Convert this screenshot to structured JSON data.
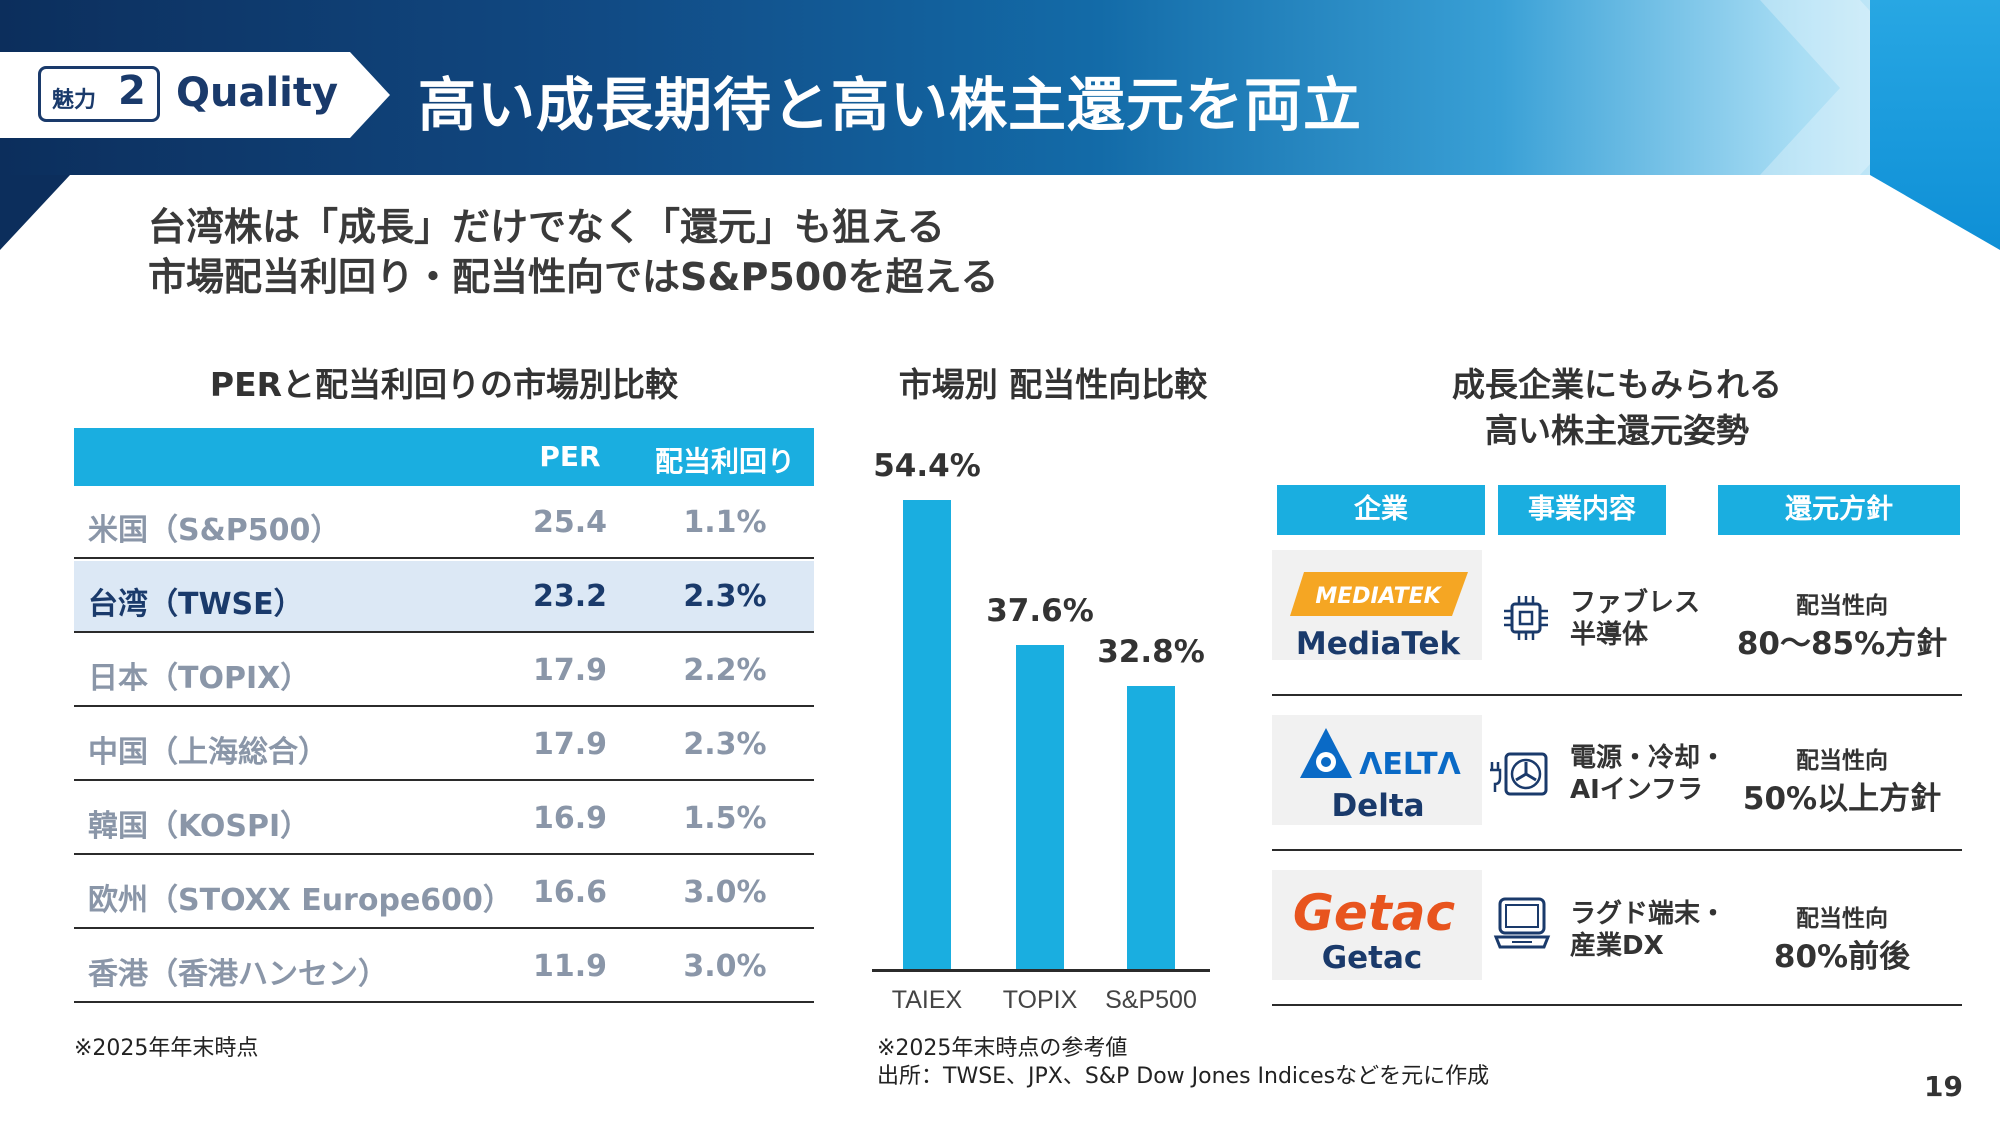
{
  "header": {
    "tag_small": "魅力",
    "tag_num": "2",
    "tag_word": "Quality",
    "title": "高い成長期待と高い株主還元を両立"
  },
  "subtitle": {
    "line1": "台湾株は「成長」だけでなく「還元」も狙える",
    "line2": "市場配当利回り・配当性向ではS&P500を超える"
  },
  "table_section": {
    "title": "PERと配当利回りの市場別比較",
    "headers": [
      "PER",
      "配当利回り"
    ],
    "rows": [
      {
        "market": "米国（S&P500）",
        "per": "25.4",
        "yield": "1.1%"
      },
      {
        "market": "台湾（TWSE）",
        "per": "23.2",
        "yield": "2.3%"
      },
      {
        "market": "日本（TOPIX）",
        "per": "17.9",
        "yield": "2.2%"
      },
      {
        "market": "中国（上海総合）",
        "per": "17.9",
        "yield": "2.3%"
      },
      {
        "market": "韓国（KOSPI）",
        "per": "16.9",
        "yield": "1.5%"
      },
      {
        "market": "欧州（STOXX Europe600）",
        "per": "16.6",
        "yield": "3.0%"
      },
      {
        "market": "香港（香港ハンセン）",
        "per": "11.9",
        "yield": "3.0%"
      }
    ],
    "note": "※2025年年末時点"
  },
  "chart_section": {
    "title": "市場別 配当性向比較",
    "note1": "※2025年末時点の参考値",
    "note2": "出所：TWSE、JPX、S&P Dow Jones Indicesなどを元に作成"
  },
  "chart_data": {
    "type": "bar",
    "title": "市場別 配当性向比較",
    "categories": [
      "TAIEX",
      "TOPIX",
      "S&P500"
    ],
    "values": [
      54.4,
      37.6,
      32.8
    ],
    "labels": [
      "54.4%",
      "37.6%",
      "32.8%"
    ],
    "bar_color": "#1aaee0",
    "ylim": [
      0,
      58
    ]
  },
  "companies_section": {
    "title1": "成長企業にもみられる",
    "title2": "高い株主還元姿勢",
    "headers": [
      "企業",
      "事業内容",
      "還元方針"
    ],
    "rows": [
      {
        "logo_text": "MEDIATEK",
        "name": "MediaTek",
        "biz1": "ファブレス",
        "biz2": "半導体",
        "icon": "chip-icon",
        "pol1": "配当性向",
        "pol2": "80～85%方針"
      },
      {
        "logo_text": "ΛELTΛ",
        "name": "Delta",
        "biz1": "電源・冷却・",
        "biz2": "AIインフラ",
        "icon": "power-fan-icon",
        "pol1": "配当性向",
        "pol2": "50%以上方針"
      },
      {
        "logo_text": "Getac",
        "name": "Getac",
        "biz1": "ラグド端末・",
        "biz2": "産業DX",
        "icon": "rugged-laptop-icon",
        "pol1": "配当性向",
        "pol2": "80%前後"
      }
    ]
  },
  "page_number": "19",
  "colors": {
    "accent": "#1aaee0",
    "navy": "#1a3a6b",
    "highlight_row": "#dce8f5"
  }
}
